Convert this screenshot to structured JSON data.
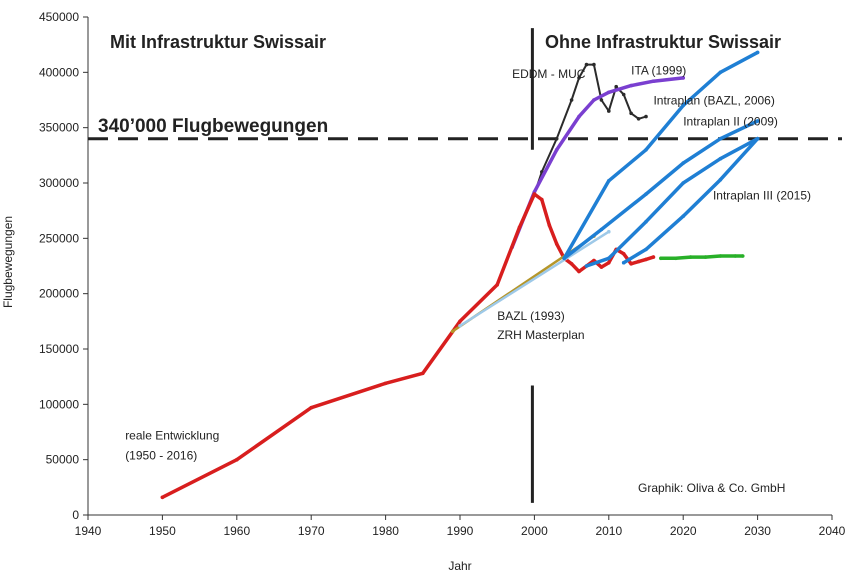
{
  "chart_data": {
    "type": "line",
    "title": "",
    "xlabel": "Jahr",
    "ylabel": "Flugbewegungen",
    "xlim": [
      1940,
      2040
    ],
    "ylim": [
      0,
      450000
    ],
    "x_ticks": [
      "1940",
      "1950",
      "1960",
      "1970",
      "1980",
      "1990",
      "2000",
      "2010",
      "2020",
      "2030",
      "2040"
    ],
    "y_ticks": [
      "0",
      "50000",
      "100000",
      "150000",
      "200000",
      "250000",
      "300000",
      "350000",
      "400000",
      "450000"
    ],
    "x_tick_values": [
      1940,
      1950,
      1960,
      1970,
      1980,
      1990,
      2000,
      2010,
      2020,
      2030,
      2040
    ],
    "y_tick_values": [
      0,
      50000,
      100000,
      150000,
      200000,
      250000,
      300000,
      350000,
      400000,
      450000
    ],
    "grid": false,
    "region_left": "Mit Infrastruktur Swissair",
    "region_right": "Ohne Infrastruktur Swissair",
    "threshold": {
      "label": "340’000 Flugbewegungen",
      "value": 340000,
      "color": "#222222"
    },
    "divider_year": 2000,
    "credit": "Graphik: Oliva & Co. GmbH",
    "series": [
      {
        "name": "",
        "color": "#2b2b2b",
        "x": [
          2000,
          2001,
          2003,
          2005,
          2006,
          2007,
          2008,
          2009,
          2010,
          2011,
          2012,
          2013,
          2014,
          2015
        ],
        "y": [
          290000,
          310000,
          340000,
          375000,
          395000,
          407000,
          407000,
          375000,
          365000,
          387000,
          380000,
          363000,
          358000,
          360000
        ]
      },
      {
        "name": "",
        "color": "#7a3fd0",
        "x": [
          1997,
          2000,
          2003,
          2006,
          2008,
          2010,
          2013,
          2016,
          2020
        ],
        "y": [
          242000,
          292000,
          330000,
          360000,
          375000,
          382000,
          388000,
          392000,
          395000
        ]
      },
      {
        "name": "",
        "color": "#d81e1e",
        "x": [
          1950,
          1960,
          1970,
          1980,
          1985,
          1990,
          1995,
          1998,
          2000,
          2001,
          2002,
          2003,
          2004,
          2005,
          2006,
          2007,
          2008,
          2009,
          2010,
          2011,
          2012,
          2013,
          2014,
          2015,
          2016
        ],
        "y": [
          16000,
          50000,
          97000,
          119000,
          128000,
          175000,
          208000,
          260000,
          290000,
          285000,
          262000,
          245000,
          232000,
          227000,
          220000,
          225000,
          230000,
          224000,
          228000,
          240000,
          236000,
          227000,
          229000,
          231000,
          233000
        ]
      },
      {
        "name": "",
        "color": "#28b028",
        "x": [
          2017,
          2019,
          2021,
          2023,
          2025,
          2027,
          2028
        ],
        "y": [
          232000,
          232000,
          233000,
          233000,
          234000,
          234000,
          234000
        ]
      },
      {
        "name": "",
        "color": "#b5962a",
        "x": [
          1989,
          2008
        ],
        "y": [
          166000,
          252000
        ]
      },
      {
        "name": "",
        "color": "#9ec9e8",
        "x": [
          1990,
          2010
        ],
        "y": [
          171000,
          256000
        ]
      },
      {
        "name": "",
        "color": "#1f7fd4",
        "x": [
          2004,
          2010,
          2015,
          2020,
          2025,
          2030
        ],
        "y": [
          232000,
          302000,
          330000,
          370000,
          400000,
          418000
        ]
      },
      {
        "name": "",
        "color": "#1f7fd4",
        "x": [
          2004,
          2009,
          2015,
          2020,
          2025,
          2030
        ],
        "y": [
          232000,
          258000,
          290000,
          318000,
          340000,
          356000
        ]
      },
      {
        "name": "",
        "color": "#1f7fd4",
        "x": [
          2007,
          2010,
          2015,
          2020,
          2025,
          2030
        ],
        "y": [
          225000,
          232000,
          265000,
          300000,
          322000,
          340000
        ]
      },
      {
        "name": "",
        "color": "#1f7fd4",
        "x": [
          2012,
          2015,
          2020,
          2025,
          2030
        ],
        "y": [
          228000,
          240000,
          270000,
          303000,
          340000
        ]
      }
    ],
    "annotations": [
      {
        "text": "EDDM - MUC",
        "x": 1997,
        "y": 395000
      },
      {
        "text": "ITA (1999)",
        "x": 2013,
        "y": 398000
      },
      {
        "text": "Intraplan (BAZL, 2006)",
        "x": 2016,
        "y": 371000
      },
      {
        "text": "Intraplan II (2009)",
        "x": 2020,
        "y": 352000
      },
      {
        "text": "Intraplan III (2015)",
        "x": 2024,
        "y": 285000
      },
      {
        "text": "BAZL (1993)",
        "x": 1995,
        "y": 176000
      },
      {
        "text": "ZRH Masterplan",
        "x": 1995,
        "y": 159000
      },
      {
        "text": "reale Entwicklung",
        "x": 1945,
        "y": 68000
      },
      {
        "text": "(1950 - 2016)",
        "x": 1945,
        "y": 50000
      }
    ]
  }
}
